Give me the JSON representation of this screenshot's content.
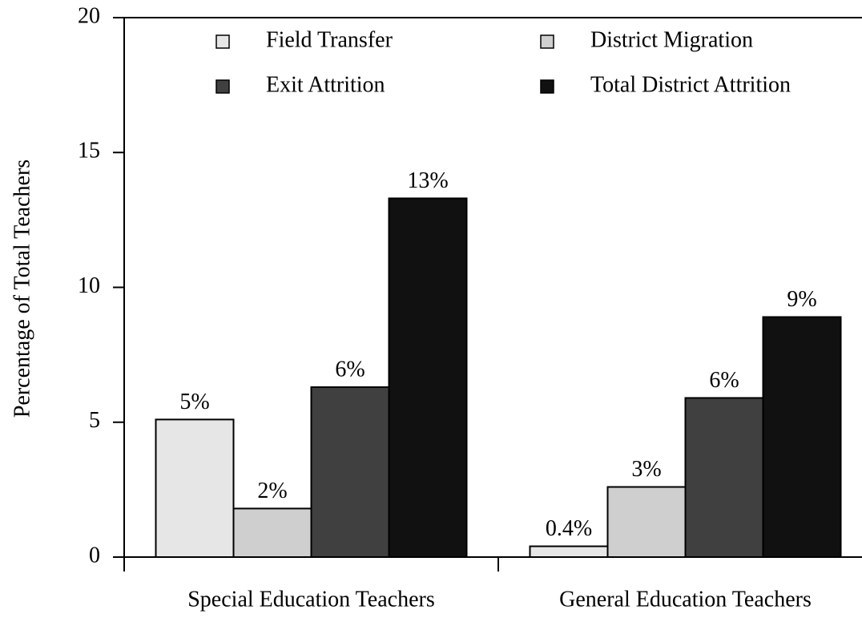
{
  "chart_data": {
    "type": "bar",
    "ylabel": "Percentage of Total Teachers",
    "categories": [
      "Special Education Teachers",
      "General Education Teachers"
    ],
    "series": [
      {
        "name": "Field Transfer",
        "color": "#e6e6e6",
        "values": [
          5.1,
          0.4
        ],
        "value_labels": [
          "5%",
          "0.4%"
        ]
      },
      {
        "name": "District Migration",
        "color": "#cfcfcf",
        "values": [
          1.8,
          2.6
        ],
        "value_labels": [
          "2%",
          "3%"
        ]
      },
      {
        "name": "Exit Attrition",
        "color": "#404040",
        "values": [
          6.3,
          5.9
        ],
        "value_labels": [
          "6%",
          "6%"
        ]
      },
      {
        "name": "Total District Attrition",
        "color": "#111111",
        "values": [
          13.3,
          8.9
        ],
        "value_labels": [
          "13%",
          "9%"
        ]
      }
    ],
    "ylim": [
      0,
      20
    ],
    "yticks": [
      0,
      5,
      10,
      15,
      20
    ],
    "legend": "top"
  }
}
